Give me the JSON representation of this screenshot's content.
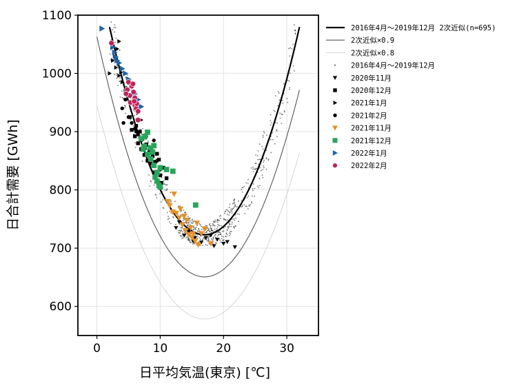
{
  "chart_data": {
    "type": "scatter",
    "xlabel": "日平均気温(東京) [℃]",
    "ylabel": "日合計需要 [GWh]",
    "xlim": [
      -3,
      35
    ],
    "ylim": [
      550,
      1100
    ],
    "x_ticks": [
      0,
      10,
      20,
      30
    ],
    "y_ticks": [
      600,
      700,
      800,
      900,
      1000,
      1100
    ],
    "grid": true,
    "legend_position": "outside-right",
    "fit_model": {
      "vertex_x": 17,
      "vertex_y": 723,
      "a": 1.585,
      "x_range": [
        2,
        32
      ]
    },
    "curves": [
      {
        "name": "2016年4月～2019年12月 2次近似(n=695)",
        "factor": 1.0,
        "color": "#000000",
        "width": 2.2
      },
      {
        "name": "2次近似×0.9",
        "factor": 0.9,
        "color": "#555555",
        "width": 1.1
      },
      {
        "name": "2次近似×0.8",
        "factor": 0.8,
        "color": "#cccccc",
        "width": 0.8
      }
    ],
    "background_series": {
      "name": "2016年4月～2019年12月",
      "color": "#444444",
      "marker": "dot",
      "n": 695
    },
    "series": [
      {
        "name": "2020年11月",
        "marker": "triangle-down",
        "color": "#000000",
        "points": [
          [
            12.5,
            735
          ],
          [
            13.8,
            722
          ],
          [
            15.2,
            712
          ],
          [
            16.0,
            706
          ],
          [
            17.2,
            718
          ],
          [
            18.5,
            704
          ],
          [
            19.0,
            715
          ],
          [
            20.0,
            708
          ],
          [
            21.8,
            702
          ],
          [
            14.5,
            728
          ],
          [
            16.5,
            710
          ],
          [
            18.0,
            722
          ],
          [
            20.6,
            711
          ],
          [
            13.0,
            745
          ],
          [
            15.5,
            718
          ]
        ]
      },
      {
        "name": "2020年12月",
        "marker": "square",
        "color": "#000000",
        "points": [
          [
            5.5,
            903
          ],
          [
            6.0,
            892
          ],
          [
            6.5,
            880
          ],
          [
            7.0,
            870
          ],
          [
            7.5,
            860
          ],
          [
            8.0,
            850
          ],
          [
            8.5,
            845
          ],
          [
            9.0,
            830
          ],
          [
            9.5,
            862
          ],
          [
            10.0,
            825
          ],
          [
            10.5,
            838
          ],
          [
            11.0,
            820
          ],
          [
            7.8,
            878
          ],
          [
            8.8,
            858
          ],
          [
            6.8,
            900
          ],
          [
            9.2,
            848
          ],
          [
            7.2,
            888
          ],
          [
            8.3,
            868
          ],
          [
            6.2,
            910
          ],
          [
            5.2,
            925
          ],
          [
            10.2,
            812
          ],
          [
            9.8,
            852
          ],
          [
            7.6,
            872
          ]
        ]
      },
      {
        "name": "2021年1月",
        "marker": "triangle-right",
        "color": "#000000",
        "points": [
          [
            2.5,
            1022
          ],
          [
            3.0,
            1010
          ],
          [
            3.2,
            1042
          ],
          [
            3.5,
            996
          ],
          [
            4.0,
            985
          ],
          [
            4.5,
            970
          ],
          [
            5.0,
            960
          ],
          [
            5.5,
            950
          ],
          [
            6.0,
            940
          ],
          [
            6.5,
            932
          ],
          [
            7.0,
            920
          ],
          [
            2.8,
            1030
          ],
          [
            3.8,
            1002
          ],
          [
            4.8,
            975
          ],
          [
            3.5,
            1055
          ],
          [
            2.0,
            1000
          ],
          [
            5.8,
            955
          ]
        ]
      },
      {
        "name": "2021年2月",
        "marker": "circle",
        "color": "#000000",
        "points": [
          [
            4.0,
            940
          ],
          [
            4.5,
            955
          ],
          [
            5.0,
            925
          ],
          [
            5.5,
            915
          ],
          [
            6.0,
            905
          ],
          [
            6.5,
            895
          ],
          [
            7.0,
            885
          ],
          [
            7.5,
            875
          ],
          [
            8.0,
            900
          ],
          [
            8.5,
            866
          ],
          [
            9.0,
            885
          ],
          [
            9.5,
            850
          ],
          [
            10.0,
            835
          ],
          [
            11.0,
            820
          ],
          [
            4.2,
            915
          ],
          [
            6.2,
            900
          ],
          [
            7.8,
            892
          ]
        ]
      },
      {
        "name": "2021年11月",
        "marker": "triangle-down",
        "color": "#e69126",
        "points": [
          [
            11.5,
            773
          ],
          [
            12.0,
            762
          ],
          [
            12.5,
            760
          ],
          [
            13.0,
            752
          ],
          [
            13.5,
            740
          ],
          [
            14.0,
            730
          ],
          [
            14.5,
            723
          ],
          [
            15.0,
            718
          ],
          [
            15.5,
            712
          ],
          [
            16.0,
            706
          ],
          [
            16.5,
            725
          ],
          [
            17.0,
            733
          ],
          [
            18.0,
            708
          ],
          [
            12.2,
            793
          ],
          [
            14.8,
            735
          ],
          [
            15.8,
            743
          ],
          [
            13.2,
            767
          ],
          [
            11.2,
            780
          ],
          [
            15.2,
            725
          ],
          [
            13.8,
            755
          ],
          [
            14.2,
            748
          ]
        ]
      },
      {
        "name": "2021年12月",
        "marker": "square",
        "color": "#2aa55c",
        "points": [
          [
            7.0,
            888
          ],
          [
            7.5,
            875
          ],
          [
            8.0,
            899
          ],
          [
            8.0,
            861
          ],
          [
            8.5,
            872
          ],
          [
            8.5,
            853
          ],
          [
            9.0,
            876
          ],
          [
            9.0,
            842
          ],
          [
            9.5,
            830
          ],
          [
            9.5,
            815
          ],
          [
            10.0,
            838
          ],
          [
            10.0,
            805
          ],
          [
            11.0,
            835
          ],
          [
            12.0,
            832
          ],
          [
            7.6,
            892
          ],
          [
            9.8,
            808
          ],
          [
            15.6,
            774
          ],
          [
            8.8,
            865
          ],
          [
            7.3,
            870
          ],
          [
            9.2,
            822
          ]
        ]
      },
      {
        "name": "2022年1月",
        "marker": "triangle-right",
        "color": "#1f63a8",
        "points": [
          [
            0.8,
            1077
          ],
          [
            2.5,
            1045
          ],
          [
            2.8,
            1036
          ],
          [
            3.0,
            1028
          ],
          [
            3.5,
            1018
          ],
          [
            4.0,
            1008
          ],
          [
            4.5,
            1000
          ],
          [
            5.0,
            990
          ],
          [
            5.5,
            978
          ],
          [
            6.0,
            965
          ],
          [
            6.5,
            955
          ],
          [
            7.0,
            943
          ],
          [
            3.2,
            1022
          ],
          [
            5.2,
            985
          ]
        ]
      },
      {
        "name": "2022年2月",
        "marker": "circle",
        "color": "#c0245c",
        "points": [
          [
            2.3,
            1052
          ],
          [
            4.8,
            972
          ],
          [
            5.0,
            985
          ],
          [
            5.2,
            962
          ],
          [
            5.5,
            978
          ],
          [
            5.8,
            968
          ],
          [
            6.0,
            958
          ],
          [
            6.0,
            945
          ],
          [
            6.2,
            940
          ],
          [
            6.5,
            935
          ],
          [
            6.5,
            920
          ],
          [
            5.3,
            950
          ],
          [
            5.7,
            982
          ],
          [
            4.6,
            965
          ],
          [
            6.3,
            948
          ],
          [
            5.9,
            952
          ]
        ]
      }
    ]
  }
}
